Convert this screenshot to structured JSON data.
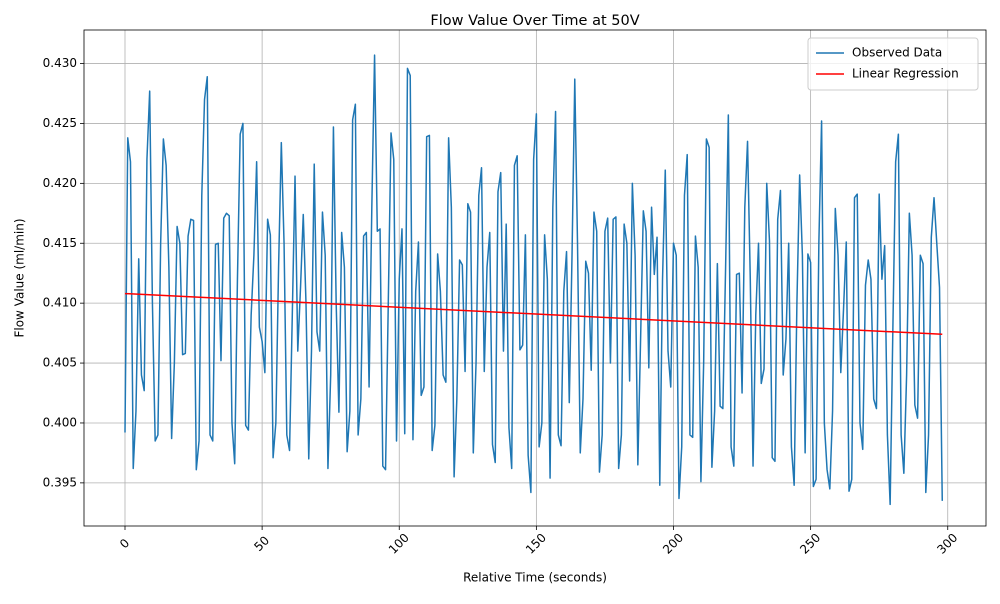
{
  "chart_data": {
    "type": "line",
    "title": "Flow Value Over Time at 50V",
    "x_label": "Relative Time (seconds)",
    "y_label": "Flow Value (ml/min)",
    "xlim": [
      -14.95,
      313.95
    ],
    "ylim": [
      0.3914,
      0.4328
    ],
    "xticks": [
      0,
      50,
      100,
      150,
      200,
      250,
      300
    ],
    "yticks": [
      0.395,
      {
        "value": 0.4,
        "label": "0.400"
      },
      0.405,
      {
        "value": 0.41,
        "label": "0.410"
      },
      0.415,
      {
        "value": 0.42,
        "label": "0.420"
      },
      0.425,
      {
        "value": 0.43,
        "label": "0.430"
      }
    ],
    "grid": true,
    "legend": "upper right",
    "series": [
      {
        "name": "Observed Data",
        "color": "#1f77b4",
        "x": [
          0,
          1,
          2,
          3,
          4,
          5,
          6,
          7,
          8,
          9,
          10,
          11,
          12,
          13,
          14,
          15,
          16,
          17,
          18,
          19,
          20,
          21,
          22,
          23,
          24,
          25,
          26,
          27,
          28,
          29,
          30,
          31,
          32,
          33,
          34,
          35,
          36,
          37,
          38,
          39,
          40,
          41,
          42,
          43,
          44,
          45,
          46,
          47,
          48,
          49,
          50,
          51,
          52,
          53,
          54,
          55,
          56,
          57,
          58,
          59,
          60,
          61,
          62,
          63,
          64,
          65,
          66,
          67,
          68,
          69,
          70,
          71,
          72,
          73,
          74,
          75,
          76,
          77,
          78,
          79,
          80,
          81,
          82,
          83,
          84,
          85,
          86,
          87,
          88,
          89,
          90,
          91,
          92,
          93,
          94,
          95,
          96,
          97,
          98,
          99,
          100,
          101,
          102,
          103,
          104,
          105,
          106,
          107,
          108,
          109,
          110,
          111,
          112,
          113,
          114,
          115,
          116,
          117,
          118,
          119,
          120,
          121,
          122,
          123,
          124,
          125,
          126,
          127,
          128,
          129,
          130,
          131,
          132,
          133,
          134,
          135,
          136,
          137,
          138,
          139,
          140,
          141,
          142,
          143,
          144,
          145,
          146,
          147,
          148,
          149,
          150,
          151,
          152,
          153,
          154,
          155,
          156,
          157,
          158,
          159,
          160,
          161,
          162,
          163,
          164,
          165,
          166,
          167,
          168,
          169,
          170,
          171,
          172,
          173,
          174,
          175,
          176,
          177,
          178,
          179,
          180,
          181,
          182,
          183,
          184,
          185,
          186,
          187,
          188,
          189,
          190,
          191,
          192,
          193,
          194,
          195,
          196,
          197,
          198,
          199,
          200,
          201,
          202,
          203,
          204,
          205,
          206,
          207,
          208,
          209,
          210,
          211,
          212,
          213,
          214,
          215,
          216,
          217,
          218,
          219,
          220,
          221,
          222,
          223,
          224,
          225,
          226,
          227,
          228,
          229,
          230,
          231,
          232,
          233,
          234,
          235,
          236,
          237,
          238,
          239,
          240,
          241,
          242,
          243,
          244,
          245,
          246,
          247,
          248,
          249,
          250,
          251,
          252,
          253,
          254,
          255,
          256,
          257,
          258,
          259,
          260,
          261,
          262,
          263,
          264,
          265,
          266,
          267,
          268,
          269,
          270,
          271,
          272,
          273,
          274,
          275,
          276,
          277,
          278,
          279,
          280,
          281,
          282,
          283,
          284,
          285,
          286,
          287,
          288,
          289,
          290,
          291,
          292,
          293,
          294,
          295,
          296,
          297,
          298
        ],
        "values": [
          0.3992,
          0.4238,
          0.4218,
          0.3962,
          0.401,
          0.4137,
          0.404,
          0.4027,
          0.422,
          0.4277,
          0.41,
          0.3985,
          0.399,
          0.415,
          0.4237,
          0.4215,
          0.413,
          0.3987,
          0.405,
          0.4164,
          0.415,
          0.4057,
          0.4058,
          0.4156,
          0.417,
          0.4169,
          0.3961,
          0.3985,
          0.419,
          0.427,
          0.4289,
          0.399,
          0.3985,
          0.4149,
          0.415,
          0.4052,
          0.4171,
          0.4175,
          0.4173,
          0.4,
          0.3966,
          0.412,
          0.4241,
          0.425,
          0.3998,
          0.3994,
          0.409,
          0.414,
          0.4218,
          0.408,
          0.4068,
          0.4042,
          0.417,
          0.4157,
          0.3971,
          0.4,
          0.413,
          0.4234,
          0.415,
          0.399,
          0.3977,
          0.409,
          0.4206,
          0.406,
          0.4113,
          0.4174,
          0.41,
          0.397,
          0.406,
          0.4216,
          0.4076,
          0.406,
          0.4176,
          0.414,
          0.3962,
          0.404,
          0.4247,
          0.41,
          0.4009,
          0.4159,
          0.413,
          0.3976,
          0.401,
          0.4253,
          0.4266,
          0.399,
          0.402,
          0.4156,
          0.4159,
          0.403,
          0.418,
          0.4307,
          0.416,
          0.4162,
          0.3964,
          0.3961,
          0.41,
          0.4242,
          0.422,
          0.3985,
          0.412,
          0.4162,
          0.3991,
          0.4296,
          0.429,
          0.3986,
          0.411,
          0.4151,
          0.4023,
          0.403,
          0.4239,
          0.424,
          0.3977,
          0.3998,
          0.4141,
          0.411,
          0.404,
          0.4034,
          0.4238,
          0.418,
          0.3955,
          0.402,
          0.4136,
          0.4132,
          0.4043,
          0.4183,
          0.4176,
          0.3975,
          0.405,
          0.419,
          0.4213,
          0.4043,
          0.413,
          0.4159,
          0.3982,
          0.3967,
          0.4193,
          0.4209,
          0.406,
          0.4166,
          0.3996,
          0.3962,
          0.4215,
          0.4223,
          0.4061,
          0.4065,
          0.4157,
          0.3973,
          0.3942,
          0.422,
          0.4258,
          0.398,
          0.4,
          0.4157,
          0.412,
          0.3954,
          0.418,
          0.426,
          0.399,
          0.3981,
          0.411,
          0.4143,
          0.4017,
          0.414,
          0.4287,
          0.415,
          0.3975,
          0.402,
          0.4135,
          0.4125,
          0.4044,
          0.4176,
          0.416,
          0.3959,
          0.399,
          0.416,
          0.4171,
          0.405,
          0.417,
          0.4172,
          0.3962,
          0.399,
          0.4166,
          0.415,
          0.4035,
          0.42,
          0.414,
          0.3965,
          0.407,
          0.4177,
          0.416,
          0.4046,
          0.418,
          0.4124,
          0.4155,
          0.3948,
          0.412,
          0.4211,
          0.406,
          0.403,
          0.415,
          0.414,
          0.3937,
          0.398,
          0.419,
          0.4224,
          0.399,
          0.3988,
          0.4156,
          0.413,
          0.3951,
          0.405,
          0.4237,
          0.423,
          0.3963,
          0.401,
          0.4133,
          0.4014,
          0.4012,
          0.413,
          0.4257,
          0.398,
          0.3964,
          0.4124,
          0.4125,
          0.4025,
          0.418,
          0.4235,
          0.412,
          0.3964,
          0.409,
          0.415,
          0.4033,
          0.4045,
          0.42,
          0.4152,
          0.3971,
          0.3968,
          0.417,
          0.4194,
          0.404,
          0.407,
          0.415,
          0.398,
          0.3948,
          0.41,
          0.4207,
          0.414,
          0.3975,
          0.4141,
          0.4134,
          0.3947,
          0.3953,
          0.415,
          0.4252,
          0.4,
          0.3961,
          0.3945,
          0.401,
          0.4179,
          0.414,
          0.4042,
          0.4095,
          0.4151,
          0.3943,
          0.3953,
          0.4188,
          0.4191,
          0.4,
          0.3978,
          0.4115,
          0.4136,
          0.412,
          0.402,
          0.4012,
          0.4191,
          0.412,
          0.4148,
          0.399,
          0.3932,
          0.408,
          0.4218,
          0.4241,
          0.399,
          0.3958,
          0.404,
          0.4175,
          0.414,
          0.4015,
          0.4004,
          0.414,
          0.4133,
          0.3942,
          0.399,
          0.4155,
          0.4188,
          0.415,
          0.4113,
          0.3935
        ]
      },
      {
        "name": "Linear Regression",
        "color": "#ff0000",
        "x": [
          0,
          298
        ],
        "values": [
          0.4108,
          0.4074
        ]
      }
    ]
  }
}
